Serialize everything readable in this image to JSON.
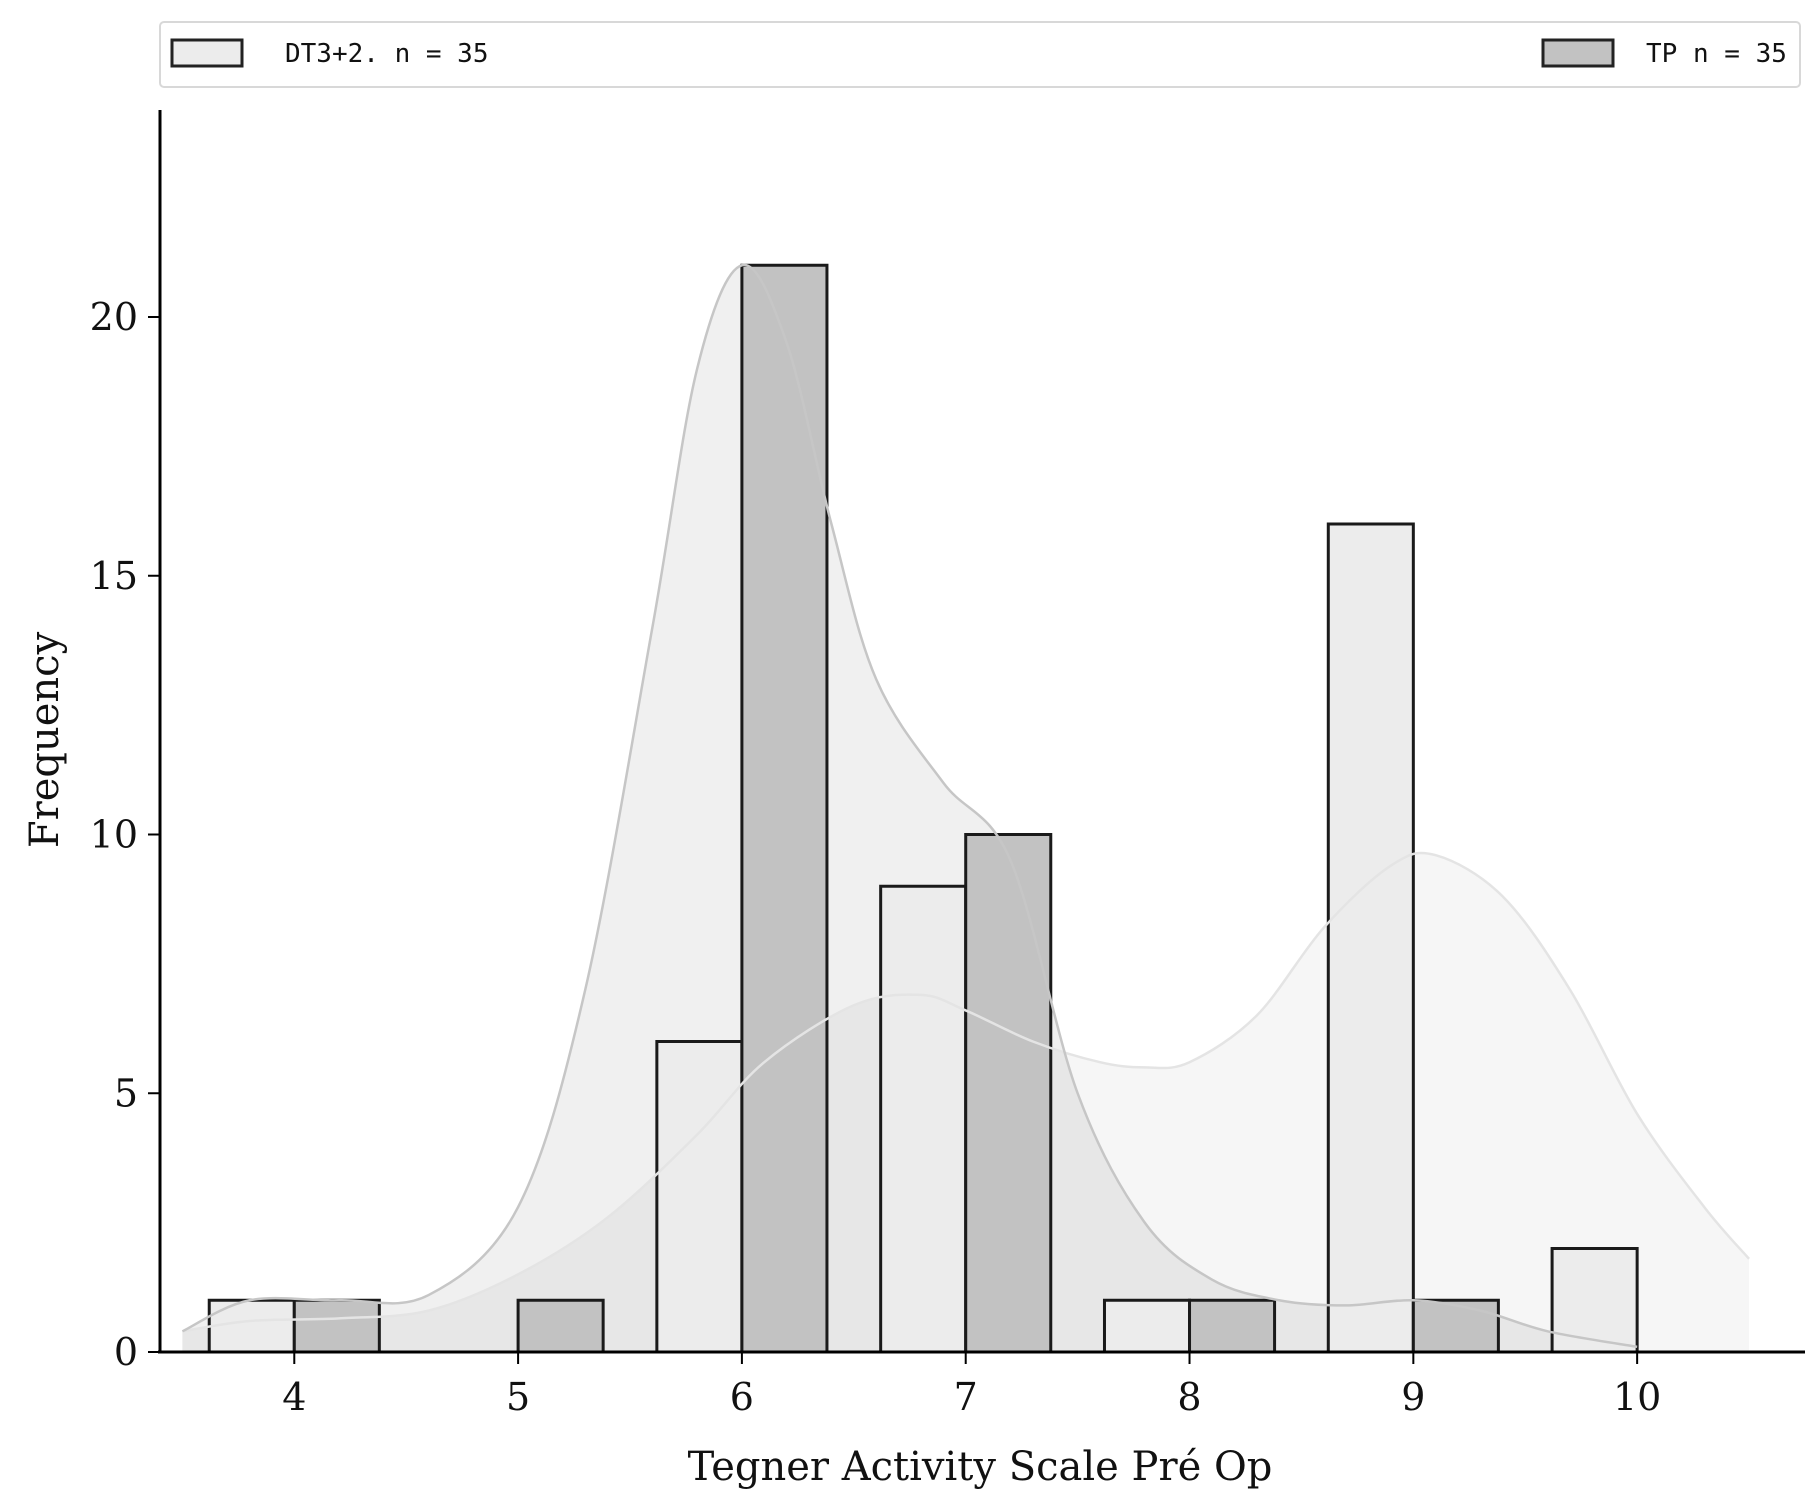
{
  "chart_data": {
    "type": "bar",
    "title": "",
    "xlabel": "Tegner Activity Scale Pré Op",
    "ylabel": "Frequency",
    "xlim": [
      3.4,
      10.75
    ],
    "ylim": [
      0,
      24
    ],
    "x_ticks": [
      4,
      5,
      6,
      7,
      8,
      9,
      10
    ],
    "y_ticks": [
      0,
      5,
      10,
      15,
      20
    ],
    "grid": false,
    "legend_position": "top, full width",
    "series": [
      {
        "name": "DT3+2. n = 35",
        "color": "#ececec",
        "kde_fill": "rgba(0,0,0,0.035)",
        "kde_line": "#e4e4e4",
        "x": [
          4,
          5,
          6,
          7,
          8,
          9,
          10
        ],
        "values": [
          1,
          0,
          6,
          9,
          1,
          16,
          2
        ],
        "kde_x": [
          3.5,
          3.8,
          4.2,
          4.6,
          5.0,
          5.4,
          5.8,
          6.1,
          6.5,
          6.8,
          7.0,
          7.3,
          7.6,
          7.8,
          8.0,
          8.3,
          8.6,
          8.9,
          9.1,
          9.4,
          9.7,
          10.0,
          10.3,
          10.5
        ],
        "kde_y": [
          0.4,
          0.6,
          0.65,
          0.8,
          1.5,
          2.6,
          4.2,
          5.6,
          6.7,
          6.9,
          6.6,
          6.0,
          5.6,
          5.5,
          5.6,
          6.5,
          8.2,
          9.4,
          9.6,
          8.8,
          7.0,
          4.6,
          2.8,
          1.8
        ]
      },
      {
        "name": "TP  n = 35",
        "color": "#c2c2c2",
        "kde_fill": "rgba(0,0,0,0.06)",
        "kde_line": "#c6c6c6",
        "x": [
          4,
          5,
          6,
          7,
          8,
          9,
          10
        ],
        "values": [
          1,
          1,
          21,
          10,
          1,
          1,
          0
        ],
        "kde_x": [
          3.5,
          3.8,
          4.2,
          4.6,
          5.0,
          5.3,
          5.6,
          5.8,
          6.0,
          6.2,
          6.4,
          6.6,
          6.9,
          7.2,
          7.5,
          7.8,
          8.1,
          8.4,
          8.7,
          9.0,
          9.3,
          9.6,
          10.0
        ],
        "kde_y": [
          0.4,
          1.0,
          1.0,
          1.1,
          2.8,
          7.0,
          14.0,
          19.0,
          21.0,
          19.5,
          16.0,
          13.0,
          11.0,
          9.5,
          5.0,
          2.5,
          1.4,
          1.0,
          0.9,
          1.0,
          0.8,
          0.4,
          0.1
        ]
      }
    ]
  }
}
